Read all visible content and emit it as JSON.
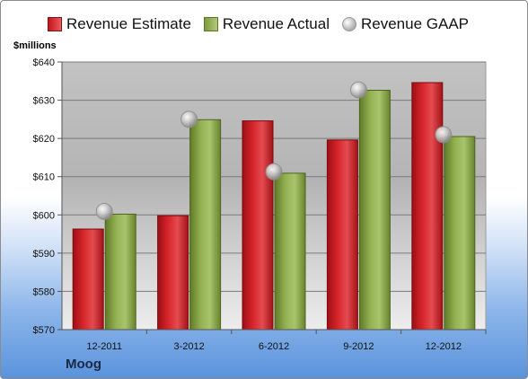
{
  "chart_data": {
    "type": "bar",
    "company": "Moog",
    "unit_label": "$millions",
    "categories": [
      "12-2011",
      "3-2012",
      "6-2012",
      "9-2012",
      "12-2012"
    ],
    "series": [
      {
        "name": "Revenue Estimate",
        "kind": "bar",
        "color": "#c8161d",
        "values": [
          596.3,
          599.8,
          624.6,
          619.6,
          634.6
        ]
      },
      {
        "name": "Revenue Actual",
        "kind": "bar",
        "color": "#8aa849",
        "values": [
          600.2,
          624.9,
          610.9,
          632.6,
          620.5
        ]
      },
      {
        "name": "Revenue GAAP",
        "kind": "marker",
        "color": "#b0b0b0",
        "values": [
          600.9,
          625.0,
          611.3,
          632.7,
          621.0
        ]
      }
    ],
    "ylim": [
      570,
      640
    ],
    "yticks": [
      {
        "value": 570,
        "label": "$570"
      },
      {
        "value": 580,
        "label": "$580"
      },
      {
        "value": 590,
        "label": "$590"
      },
      {
        "value": 600,
        "label": "$600"
      },
      {
        "value": 610,
        "label": "$610"
      },
      {
        "value": 620,
        "label": "$620"
      },
      {
        "value": 630,
        "label": "$630"
      },
      {
        "value": 640,
        "label": "$640"
      }
    ],
    "grid": true,
    "legend_position": "top"
  }
}
